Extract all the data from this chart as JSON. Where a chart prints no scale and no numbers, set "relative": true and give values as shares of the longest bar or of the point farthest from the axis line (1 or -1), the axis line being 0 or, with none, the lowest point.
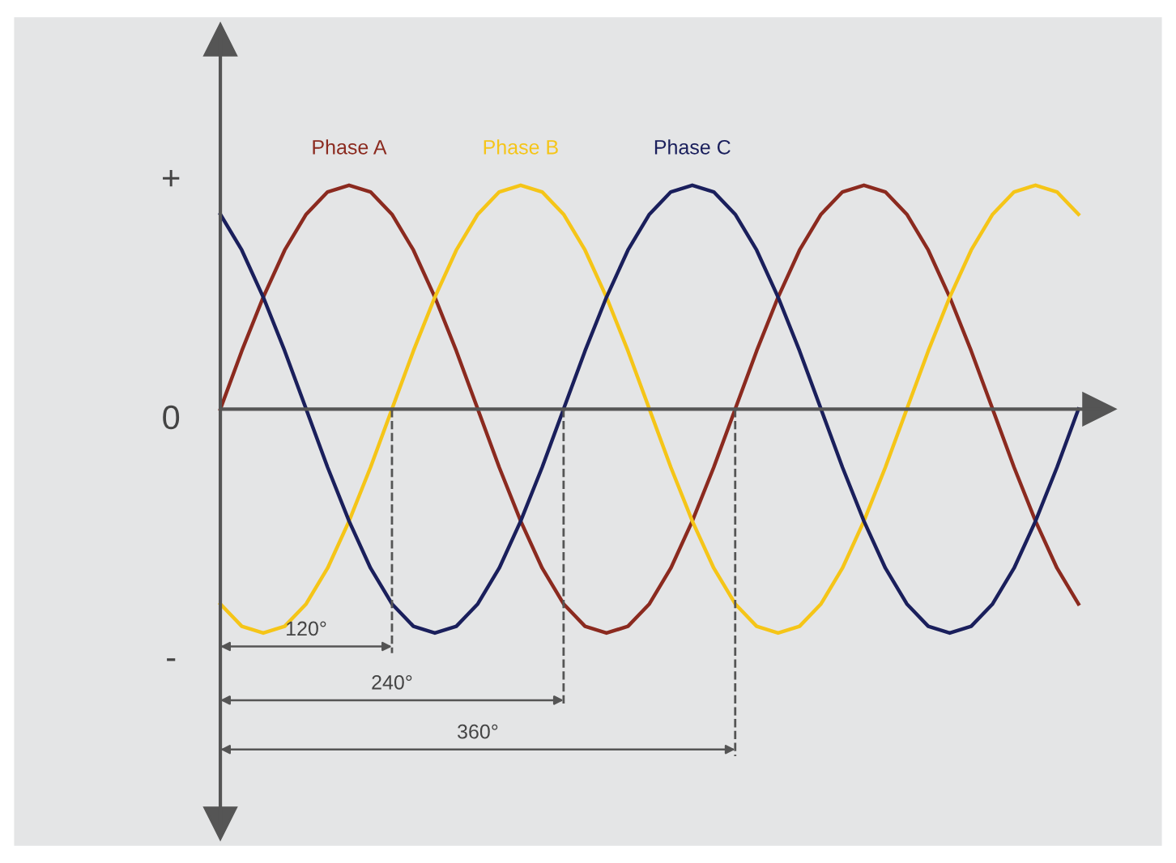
{
  "chart_data": {
    "type": "line",
    "relative": true,
    "categories": [
      null,
      null,
      null,
      null,
      null,
      null,
      null,
      null,
      null,
      null,
      null,
      null,
      null,
      null,
      null,
      null,
      null,
      null,
      null,
      null,
      null,
      null,
      null,
      null,
      null,
      null,
      null,
      null,
      null,
      null,
      null,
      null,
      null,
      null,
      null,
      null,
      null,
      null,
      null,
      null,
      null
    ],
    "line_style": "solid",
    "series": [
      {
        "name": "Phase A",
        "color": "#8b2a1f",
        "values": [
          0,
          0.26,
          0.5,
          0.71,
          0.87,
          0.97,
          1,
          0.97,
          0.87,
          0.71,
          0.5,
          0.26,
          0,
          -0.26,
          -0.5,
          -0.71,
          -0.87,
          -0.97,
          -1,
          -0.97,
          -0.87,
          -0.71,
          -0.5,
          -0.26,
          0,
          0.26,
          0.5,
          0.71,
          0.87,
          0.97,
          1,
          0.97,
          0.87,
          0.71,
          0.5,
          0.26,
          0,
          -0.26,
          -0.5,
          -0.71,
          -0.87
        ]
      },
      {
        "name": "Phase B",
        "color": "#f5c518",
        "values": [
          -0.87,
          -0.97,
          -1,
          -0.97,
          -0.87,
          -0.71,
          -0.5,
          -0.26,
          0,
          0.26,
          0.5,
          0.71,
          0.87,
          0.97,
          1,
          0.97,
          0.87,
          0.71,
          0.5,
          0.26,
          0,
          -0.26,
          -0.5,
          -0.71,
          -0.87,
          -0.97,
          -1,
          -0.97,
          -0.87,
          -0.71,
          -0.5,
          -0.26,
          0,
          0.26,
          0.5,
          0.71,
          0.87,
          0.97,
          1,
          0.97,
          0.87
        ]
      },
      {
        "name": "Phase C",
        "color": "#1a1f5c",
        "values": [
          0.87,
          0.71,
          0.5,
          0.26,
          0,
          -0.26,
          -0.5,
          -0.71,
          -0.87,
          -0.97,
          -1,
          -0.97,
          -0.87,
          -0.71,
          -0.5,
          -0.26,
          0,
          0.26,
          0.5,
          0.71,
          0.87,
          0.97,
          1,
          0.97,
          0.87,
          0.71,
          0.5,
          0.26,
          0,
          -0.26,
          -0.5,
          -0.71,
          -0.87,
          -0.97,
          -1,
          -0.97,
          -0.87,
          -0.71,
          -0.5,
          -0.26,
          0
        ]
      }
    ],
    "annotations": [
      "+",
      "0",
      "-",
      "120°",
      "240°",
      "360°"
    ]
  }
}
